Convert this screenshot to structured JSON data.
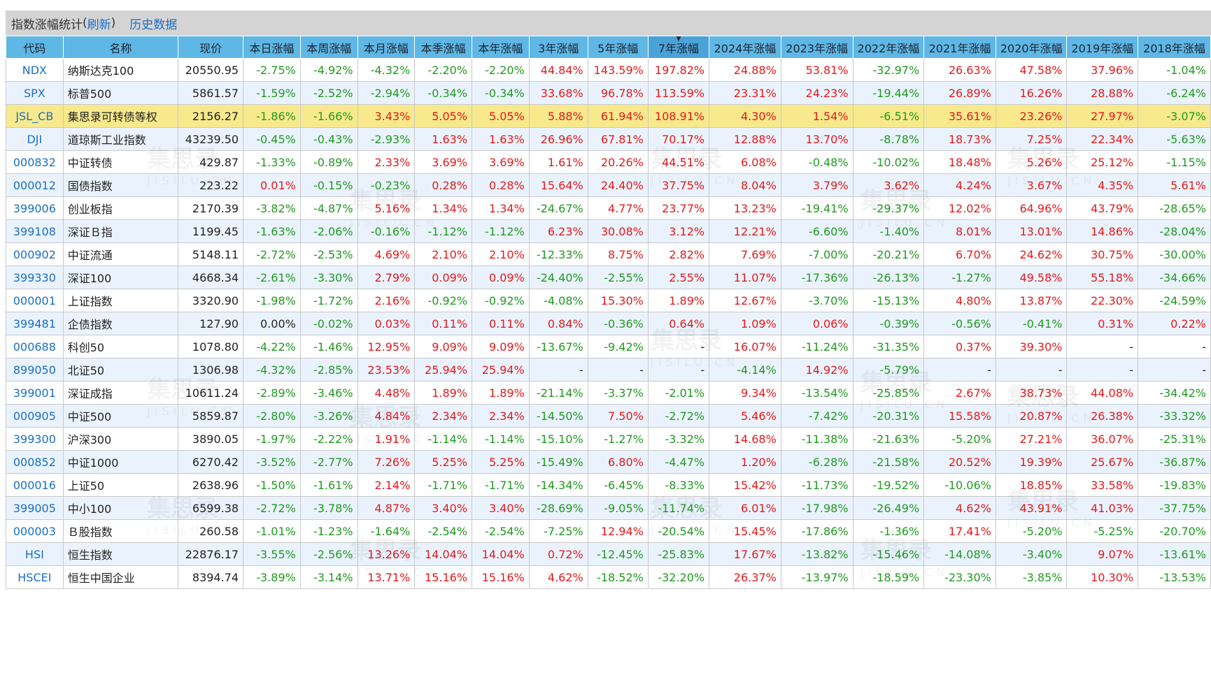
{
  "header": {
    "title": "指数涨幅统计",
    "refresh_prefix": "(",
    "refresh_label": "刷新",
    "refresh_suffix": ")",
    "history_label": "历史数据"
  },
  "columns": [
    "代码",
    "名称",
    "现价",
    "本日涨幅",
    "本周涨幅",
    "本月涨幅",
    "本季涨幅",
    "本年涨幅",
    "3年涨幅",
    "5年涨幅",
    "7年涨幅",
    "2024年涨幅",
    "2023年涨幅",
    "2022年涨幅",
    "2021年涨幅",
    "2020年涨幅",
    "2019年涨幅",
    "2018年涨幅"
  ],
  "sort_indicator": "▼",
  "watermark": {
    "text": "集思录",
    "sub": "JISILU.CN"
  },
  "rows": [
    {
      "code": "NDX",
      "name": "纳斯达克100",
      "price": "20550.95",
      "vals": [
        "-2.75%",
        "-4.92%",
        "-4.32%",
        "-2.20%",
        "-2.20%",
        "44.84%",
        "143.59%",
        "197.82%",
        "24.88%",
        "53.81%",
        "-32.97%",
        "26.63%",
        "47.58%",
        "37.96%",
        "-1.04%"
      ]
    },
    {
      "code": "SPX",
      "name": "标普500",
      "price": "5861.57",
      "vals": [
        "-1.59%",
        "-2.52%",
        "-2.94%",
        "-0.34%",
        "-0.34%",
        "33.68%",
        "96.78%",
        "113.59%",
        "23.31%",
        "24.23%",
        "-19.44%",
        "26.89%",
        "16.26%",
        "28.88%",
        "-6.24%"
      ]
    },
    {
      "code": "JSL_CB",
      "name": "集思录可转债等权",
      "price": "2156.27",
      "vals": [
        "-1.86%",
        "-1.66%",
        "3.43%",
        "5.05%",
        "5.05%",
        "5.88%",
        "61.94%",
        "108.91%",
        "4.30%",
        "1.54%",
        "-6.51%",
        "35.61%",
        "23.26%",
        "27.97%",
        "-3.07%"
      ]
    },
    {
      "code": "DJI",
      "name": "道琼斯工业指数",
      "price": "43239.50",
      "vals": [
        "-0.45%",
        "-0.43%",
        "-2.93%",
        "1.63%",
        "1.63%",
        "26.96%",
        "67.81%",
        "70.17%",
        "12.88%",
        "13.70%",
        "-8.78%",
        "18.73%",
        "7.25%",
        "22.34%",
        "-5.63%"
      ]
    },
    {
      "code": "000832",
      "name": "中证转债",
      "price": "429.87",
      "vals": [
        "-1.33%",
        "-0.89%",
        "2.33%",
        "3.69%",
        "3.69%",
        "1.61%",
        "20.26%",
        "44.51%",
        "6.08%",
        "-0.48%",
        "-10.02%",
        "18.48%",
        "5.26%",
        "25.12%",
        "-1.15%"
      ]
    },
    {
      "code": "000012",
      "name": "国债指数",
      "price": "223.22",
      "vals": [
        "0.01%",
        "-0.15%",
        "-0.23%",
        "0.28%",
        "0.28%",
        "15.64%",
        "24.40%",
        "37.75%",
        "8.04%",
        "3.79%",
        "3.62%",
        "4.24%",
        "3.67%",
        "4.35%",
        "5.61%"
      ]
    },
    {
      "code": "399006",
      "name": "创业板指",
      "price": "2170.39",
      "vals": [
        "-3.82%",
        "-4.87%",
        "5.16%",
        "1.34%",
        "1.34%",
        "-24.67%",
        "4.77%",
        "23.77%",
        "13.23%",
        "-19.41%",
        "-29.37%",
        "12.02%",
        "64.96%",
        "43.79%",
        "-28.65%"
      ]
    },
    {
      "code": "399108",
      "name": "深证Ｂ指",
      "price": "1199.45",
      "vals": [
        "-1.63%",
        "-2.06%",
        "-0.16%",
        "-1.12%",
        "-1.12%",
        "6.23%",
        "30.08%",
        "3.12%",
        "12.21%",
        "-6.60%",
        "-1.40%",
        "8.01%",
        "13.01%",
        "14.86%",
        "-28.04%"
      ]
    },
    {
      "code": "000902",
      "name": "中证流通",
      "price": "5148.11",
      "vals": [
        "-2.72%",
        "-2.53%",
        "4.69%",
        "2.10%",
        "2.10%",
        "-12.33%",
        "8.75%",
        "2.82%",
        "7.69%",
        "-7.00%",
        "-20.21%",
        "6.70%",
        "24.62%",
        "30.75%",
        "-30.00%"
      ]
    },
    {
      "code": "399330",
      "name": "深证100",
      "price": "4668.34",
      "vals": [
        "-2.61%",
        "-3.30%",
        "2.79%",
        "0.09%",
        "0.09%",
        "-24.40%",
        "-2.55%",
        "2.55%",
        "11.07%",
        "-17.36%",
        "-26.13%",
        "-1.27%",
        "49.58%",
        "55.18%",
        "-34.66%"
      ]
    },
    {
      "code": "000001",
      "name": "上证指数",
      "price": "3320.90",
      "vals": [
        "-1.98%",
        "-1.72%",
        "2.16%",
        "-0.92%",
        "-0.92%",
        "-4.08%",
        "15.30%",
        "1.89%",
        "12.67%",
        "-3.70%",
        "-15.13%",
        "4.80%",
        "13.87%",
        "22.30%",
        "-24.59%"
      ]
    },
    {
      "code": "399481",
      "name": "企债指数",
      "price": "127.90",
      "vals": [
        "0.00%",
        "-0.02%",
        "0.03%",
        "0.11%",
        "0.11%",
        "0.84%",
        "-0.36%",
        "0.64%",
        "1.09%",
        "0.06%",
        "-0.39%",
        "-0.56%",
        "-0.41%",
        "0.31%",
        "0.22%"
      ]
    },
    {
      "code": "000688",
      "name": "科创50",
      "price": "1078.80",
      "vals": [
        "-4.22%",
        "-1.46%",
        "12.95%",
        "9.09%",
        "9.09%",
        "-13.67%",
        "-9.42%",
        "-",
        "16.07%",
        "-11.24%",
        "-31.35%",
        "0.37%",
        "39.30%",
        "-",
        "-"
      ]
    },
    {
      "code": "899050",
      "name": "北证50",
      "price": "1306.98",
      "vals": [
        "-4.32%",
        "-2.85%",
        "23.53%",
        "25.94%",
        "25.94%",
        "-",
        "-",
        "-",
        "-4.14%",
        "14.92%",
        "-5.79%",
        "-",
        "-",
        "-",
        "-"
      ]
    },
    {
      "code": "399001",
      "name": "深证成指",
      "price": "10611.24",
      "vals": [
        "-2.89%",
        "-3.46%",
        "4.48%",
        "1.89%",
        "1.89%",
        "-21.14%",
        "-3.37%",
        "-2.01%",
        "9.34%",
        "-13.54%",
        "-25.85%",
        "2.67%",
        "38.73%",
        "44.08%",
        "-34.42%"
      ]
    },
    {
      "code": "000905",
      "name": "中证500",
      "price": "5859.87",
      "vals": [
        "-2.80%",
        "-3.26%",
        "4.84%",
        "2.34%",
        "2.34%",
        "-14.50%",
        "7.50%",
        "-2.72%",
        "5.46%",
        "-7.42%",
        "-20.31%",
        "15.58%",
        "20.87%",
        "26.38%",
        "-33.32%"
      ]
    },
    {
      "code": "399300",
      "name": "沪深300",
      "price": "3890.05",
      "vals": [
        "-1.97%",
        "-2.22%",
        "1.91%",
        "-1.14%",
        "-1.14%",
        "-15.10%",
        "-1.27%",
        "-3.32%",
        "14.68%",
        "-11.38%",
        "-21.63%",
        "-5.20%",
        "27.21%",
        "36.07%",
        "-25.31%"
      ]
    },
    {
      "code": "000852",
      "name": "中证1000",
      "price": "6270.42",
      "vals": [
        "-3.52%",
        "-2.77%",
        "7.26%",
        "5.25%",
        "5.25%",
        "-15.49%",
        "6.80%",
        "-4.47%",
        "1.20%",
        "-6.28%",
        "-21.58%",
        "20.52%",
        "19.39%",
        "25.67%",
        "-36.87%"
      ]
    },
    {
      "code": "000016",
      "name": "上证50",
      "price": "2638.96",
      "vals": [
        "-1.50%",
        "-1.61%",
        "2.14%",
        "-1.71%",
        "-1.71%",
        "-14.34%",
        "-6.45%",
        "-8.33%",
        "15.42%",
        "-11.73%",
        "-19.52%",
        "-10.06%",
        "18.85%",
        "33.58%",
        "-19.83%"
      ]
    },
    {
      "code": "399005",
      "name": "中小100",
      "price": "6599.38",
      "vals": [
        "-2.72%",
        "-3.78%",
        "4.87%",
        "3.40%",
        "3.40%",
        "-28.69%",
        "-9.05%",
        "-11.74%",
        "6.01%",
        "-17.98%",
        "-26.49%",
        "4.62%",
        "43.91%",
        "41.03%",
        "-37.75%"
      ]
    },
    {
      "code": "000003",
      "name": "Ｂ股指数",
      "price": "260.58",
      "vals": [
        "-1.01%",
        "-1.23%",
        "-1.64%",
        "-2.54%",
        "-2.54%",
        "-7.25%",
        "12.94%",
        "-20.54%",
        "15.45%",
        "-17.86%",
        "-1.36%",
        "17.41%",
        "-5.20%",
        "-5.25%",
        "-20.70%"
      ]
    },
    {
      "code": "HSI",
      "name": "恒生指数",
      "price": "22876.17",
      "vals": [
        "-3.55%",
        "-2.56%",
        "13.26%",
        "14.04%",
        "14.04%",
        "0.72%",
        "-12.45%",
        "-25.83%",
        "17.67%",
        "-13.82%",
        "-15.46%",
        "-14.08%",
        "-3.40%",
        "9.07%",
        "-13.61%"
      ]
    },
    {
      "code": "HSCEI",
      "name": "恒生中国企业",
      "price": "8394.74",
      "vals": [
        "-3.89%",
        "-3.14%",
        "13.71%",
        "15.16%",
        "15.16%",
        "4.62%",
        "-18.52%",
        "-32.20%",
        "26.37%",
        "-13.97%",
        "-18.59%",
        "-23.30%",
        "-3.85%",
        "10.30%",
        "-13.53%"
      ]
    }
  ]
}
